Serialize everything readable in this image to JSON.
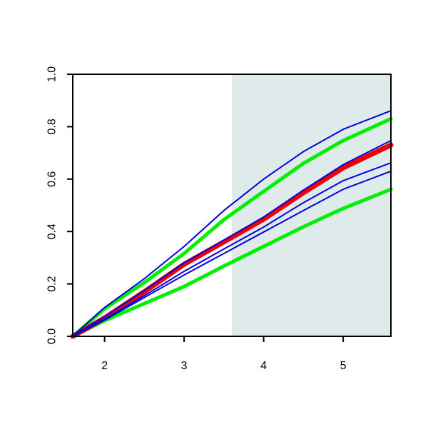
{
  "chart_data": {
    "type": "line",
    "x": [
      1.6,
      2,
      2.5,
      3,
      3.5,
      4,
      4.5,
      5,
      5.6
    ],
    "xlim": [
      1.6,
      5.6
    ],
    "xticks": [
      2,
      3,
      4,
      5
    ],
    "ylim": [
      0,
      1
    ],
    "yticks": [
      {
        "value": 0,
        "label": "0.0"
      },
      0.2,
      0.4,
      0.6,
      0.8,
      {
        "value": 1,
        "label": "1.0"
      }
    ],
    "shaded_x": [
      3.6,
      5.6
    ],
    "shade_color": "#deebea",
    "series": [
      {
        "color": "#00ee00",
        "width": 5,
        "values": [
          0,
          0.105,
          0.205,
          0.316,
          0.445,
          0.553,
          0.66,
          0.747,
          0.83
        ]
      },
      {
        "color": "#00ee00",
        "width": 5,
        "values": [
          0,
          0.06,
          0.125,
          0.19,
          0.268,
          0.343,
          0.418,
          0.488,
          0.561
        ]
      },
      {
        "color": "#ee0000",
        "width": 7,
        "values": [
          0,
          0.07,
          0.17,
          0.275,
          0.36,
          0.447,
          0.548,
          0.643,
          0.73
        ]
      },
      {
        "color": "#0000dd",
        "width": 2,
        "values": [
          0,
          0.11,
          0.22,
          0.343,
          0.48,
          0.6,
          0.705,
          0.79,
          0.861
        ]
      },
      {
        "color": "#0000dd",
        "width": 2,
        "values": [
          0,
          0.075,
          0.175,
          0.28,
          0.367,
          0.455,
          0.558,
          0.655,
          0.747
        ]
      },
      {
        "color": "#0000dd",
        "width": 2,
        "values": [
          0,
          0.065,
          0.155,
          0.248,
          0.333,
          0.417,
          0.51,
          0.594,
          0.662
        ]
      },
      {
        "color": "#0000dd",
        "width": 2,
        "values": [
          0,
          0.062,
          0.148,
          0.234,
          0.316,
          0.398,
          0.48,
          0.561,
          0.63
        ]
      }
    ]
  }
}
